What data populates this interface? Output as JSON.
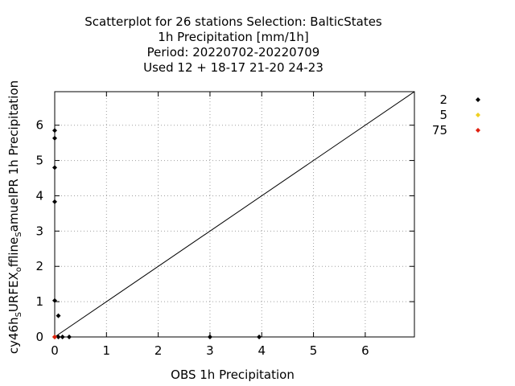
{
  "chart_data": {
    "type": "scatter",
    "title_lines": [
      "Scatterplot for   26 stations Selection: BalticStates",
      "1h Precipitation [mm/1h]",
      "Period: 20220702-20220709",
      "Used  12 + 18-17 21-20 24-23"
    ],
    "xlabel": "OBS 1h Precipitation",
    "ylabel_parts": [
      "cy46h",
      "S",
      "URFEX",
      "o",
      "ffline",
      "S",
      "amuelPR 1h Precipitation"
    ],
    "xlim": [
      0,
      6.95
    ],
    "ylim": [
      0,
      6.95
    ],
    "xticks": [
      "0",
      "1",
      "2",
      "3",
      "4",
      "5",
      "6"
    ],
    "yticks": [
      "0",
      "1",
      "2",
      "3",
      "4",
      "5",
      "6"
    ],
    "grid": true,
    "legend_position": "right",
    "diagonal": [
      [
        0,
        0
      ],
      [
        6.95,
        6.95
      ]
    ],
    "series": [
      {
        "name": "2",
        "color": "#000000",
        "points": [
          [
            0,
            5.85
          ],
          [
            0,
            5.63
          ],
          [
            0,
            4.8
          ],
          [
            0,
            3.83
          ],
          [
            0,
            1.03
          ],
          [
            0.07,
            0.6
          ],
          [
            0.07,
            0
          ],
          [
            0.15,
            0
          ],
          [
            0.28,
            0
          ],
          [
            3.0,
            0
          ],
          [
            3.95,
            0
          ],
          [
            0,
            0
          ]
        ]
      },
      {
        "name": "5",
        "color": "#f0d020",
        "points": [
          [
            0,
            0
          ]
        ]
      },
      {
        "name": "75",
        "color": "#e02010",
        "points": [
          [
            0,
            0
          ]
        ]
      }
    ]
  }
}
